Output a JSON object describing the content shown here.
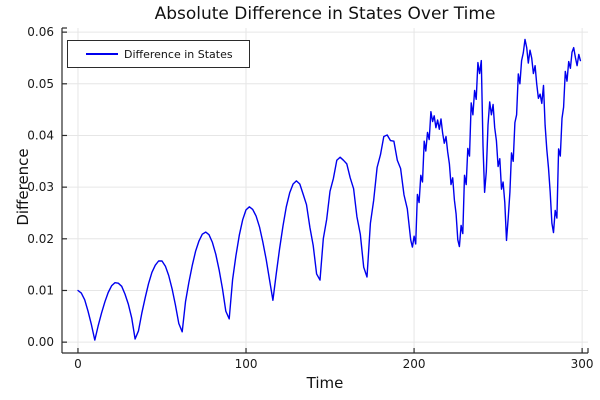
{
  "colors": {
    "line": "#0000ee",
    "grid": "#e6e6e6",
    "axis": "#2b2b2b",
    "text": "#111111",
    "background": "#ffffff"
  },
  "chart_data": {
    "type": "line",
    "title": "Absolute Difference in States Over Time",
    "xlabel": "Time",
    "ylabel": "Difference",
    "xlim": [
      -9.5,
      303.5
    ],
    "ylim": [
      -0.0021,
      0.0608
    ],
    "grid": true,
    "legend_position": "top-left",
    "xticks": {
      "values": [
        0,
        100,
        200,
        300
      ],
      "labels": [
        "0",
        "100",
        "200",
        "300"
      ]
    },
    "yticks": {
      "values": [
        0.0,
        0.01,
        0.02,
        0.03,
        0.04,
        0.05,
        0.06
      ],
      "labels": [
        "0.00",
        "0.01",
        "0.02",
        "0.03",
        "0.04",
        "0.05",
        "0.06"
      ]
    },
    "series": [
      {
        "name": "Difference in States",
        "color": "#0000ee",
        "x": [
          0,
          2,
          4,
          6,
          8,
          10,
          12,
          14,
          16,
          18,
          20,
          22,
          24,
          26,
          28,
          30,
          32,
          34,
          36,
          38,
          40,
          42,
          44,
          46,
          48,
          50,
          52,
          54,
          56,
          58,
          60,
          62,
          64,
          66,
          68,
          70,
          72,
          74,
          76,
          78,
          80,
          82,
          84,
          86,
          88,
          90,
          92,
          94,
          96,
          98,
          100,
          102,
          104,
          106,
          108,
          110,
          112,
          114,
          116,
          118,
          120,
          122,
          124,
          126,
          128,
          130,
          132,
          134,
          136,
          138,
          140,
          142,
          144,
          146,
          148,
          150,
          152,
          154,
          156,
          158,
          160,
          162,
          164,
          166,
          168,
          170,
          172,
          174,
          176,
          178,
          180,
          182,
          184,
          186,
          188,
          190,
          192,
          194,
          196,
          198,
          199,
          200,
          201,
          202,
          203,
          204,
          205,
          206,
          207,
          208,
          209,
          210,
          211,
          212,
          213,
          214,
          215,
          216,
          217,
          218,
          219,
          220,
          221,
          222,
          223,
          224,
          225,
          226,
          227,
          228,
          229,
          230,
          231,
          232,
          233,
          234,
          235,
          236,
          237,
          238,
          239,
          240,
          241,
          242,
          243,
          244,
          245,
          246,
          247,
          248,
          249,
          250,
          251,
          252,
          253,
          254,
          255,
          256,
          257,
          258,
          259,
          260,
          261,
          262,
          263,
          264,
          265,
          266,
          267,
          268,
          269,
          270,
          271,
          272,
          273,
          274,
          275,
          276,
          277,
          278,
          279,
          280,
          281,
          282,
          283,
          284,
          285,
          286,
          287,
          288,
          289,
          290,
          291,
          292,
          293,
          294,
          295,
          296,
          297,
          298,
          299
        ],
        "y": [
          0.01,
          0.0095,
          0.0082,
          0.006,
          0.0034,
          0.0004,
          0.0031,
          0.0056,
          0.0078,
          0.0096,
          0.0109,
          0.0115,
          0.0114,
          0.0108,
          0.0093,
          0.0073,
          0.0047,
          0.0006,
          0.0022,
          0.0056,
          0.0086,
          0.0113,
          0.0135,
          0.0149,
          0.0157,
          0.0157,
          0.0147,
          0.0129,
          0.0103,
          0.0072,
          0.0036,
          0.002,
          0.0078,
          0.0116,
          0.0148,
          0.0176,
          0.0196,
          0.0209,
          0.0213,
          0.0208,
          0.0193,
          0.017,
          0.014,
          0.0103,
          0.006,
          0.0045,
          0.0121,
          0.0167,
          0.0207,
          0.0237,
          0.0256,
          0.0262,
          0.0257,
          0.0244,
          0.0223,
          0.0194,
          0.016,
          0.0121,
          0.0081,
          0.0133,
          0.0181,
          0.0225,
          0.0262,
          0.0289,
          0.0306,
          0.0312,
          0.0306,
          0.0286,
          0.0266,
          0.0222,
          0.0187,
          0.0132,
          0.012,
          0.02,
          0.0238,
          0.0292,
          0.0317,
          0.0352,
          0.0358,
          0.0352,
          0.0345,
          0.0318,
          0.0297,
          0.0243,
          0.0209,
          0.0145,
          0.0126,
          0.023,
          0.0275,
          0.0338,
          0.0363,
          0.0398,
          0.0401,
          0.039,
          0.0389,
          0.0352,
          0.0336,
          0.0285,
          0.0258,
          0.0198,
          0.0184,
          0.0205,
          0.019,
          0.0286,
          0.027,
          0.0323,
          0.031,
          0.0389,
          0.037,
          0.0406,
          0.0392,
          0.0446,
          0.0427,
          0.0438,
          0.0415,
          0.043,
          0.0412,
          0.0432,
          0.0405,
          0.0385,
          0.0398,
          0.0368,
          0.0345,
          0.0305,
          0.0318,
          0.0275,
          0.0248,
          0.0198,
          0.0185,
          0.0226,
          0.021,
          0.0323,
          0.0305,
          0.0375,
          0.036,
          0.0463,
          0.044,
          0.0487,
          0.047,
          0.0541,
          0.052,
          0.0545,
          0.038,
          0.029,
          0.033,
          0.042,
          0.0465,
          0.044,
          0.046,
          0.0415,
          0.039,
          0.034,
          0.0355,
          0.0296,
          0.031,
          0.027,
          0.0197,
          0.024,
          0.029,
          0.0366,
          0.035,
          0.0425,
          0.044,
          0.0519,
          0.05,
          0.0545,
          0.056,
          0.0586,
          0.057,
          0.054,
          0.0565,
          0.055,
          0.052,
          0.0535,
          0.05,
          0.0472,
          0.048,
          0.0462,
          0.0497,
          0.042,
          0.0373,
          0.0337,
          0.029,
          0.023,
          0.0212,
          0.0255,
          0.024,
          0.0374,
          0.036,
          0.0433,
          0.0455,
          0.0524,
          0.0505,
          0.0543,
          0.053,
          0.0561,
          0.057,
          0.0551,
          0.0535,
          0.0557,
          0.0545
        ]
      }
    ]
  }
}
